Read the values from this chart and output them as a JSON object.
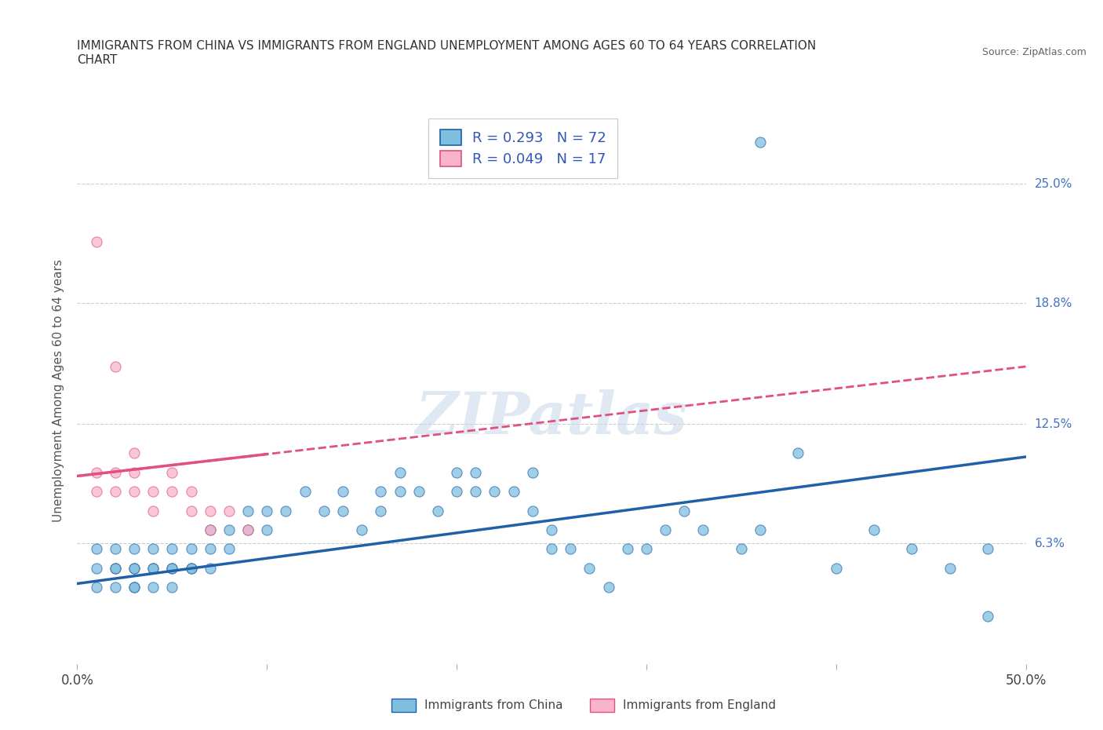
{
  "title": "IMMIGRANTS FROM CHINA VS IMMIGRANTS FROM ENGLAND UNEMPLOYMENT AMONG AGES 60 TO 64 YEARS CORRELATION\nCHART",
  "source": "Source: ZipAtlas.com",
  "ylabel": "Unemployment Among Ages 60 to 64 years",
  "xlim": [
    0.0,
    0.5
  ],
  "ylim": [
    0.0,
    0.285
  ],
  "x_ticks": [
    0.0,
    0.1,
    0.2,
    0.3,
    0.4,
    0.5
  ],
  "x_tick_labels": [
    "0.0%",
    "",
    "",
    "",
    "",
    "50.0%"
  ],
  "y_tick_vals": [
    0.063,
    0.125,
    0.188,
    0.25
  ],
  "y_tick_labels": [
    "6.3%",
    "12.5%",
    "18.8%",
    "25.0%"
  ],
  "china_color": "#7fbfdf",
  "england_color": "#f8b4c8",
  "china_line_color": "#2060a8",
  "england_line_color": "#e05080",
  "legend_R_china": "R = 0.293",
  "legend_N_china": "N = 72",
  "legend_R_england": "R = 0.049",
  "legend_N_england": "N = 17",
  "legend_label_china": "Immigrants from China",
  "legend_label_england": "Immigrants from England",
  "watermark": "ZIPatlas",
  "china_x": [
    0.01,
    0.01,
    0.01,
    0.02,
    0.02,
    0.02,
    0.02,
    0.03,
    0.03,
    0.03,
    0.03,
    0.03,
    0.04,
    0.04,
    0.04,
    0.04,
    0.05,
    0.05,
    0.05,
    0.05,
    0.06,
    0.06,
    0.06,
    0.07,
    0.07,
    0.07,
    0.08,
    0.08,
    0.09,
    0.09,
    0.1,
    0.1,
    0.11,
    0.12,
    0.13,
    0.14,
    0.14,
    0.15,
    0.16,
    0.16,
    0.17,
    0.17,
    0.18,
    0.19,
    0.2,
    0.2,
    0.21,
    0.21,
    0.22,
    0.23,
    0.24,
    0.24,
    0.25,
    0.25,
    0.26,
    0.27,
    0.28,
    0.29,
    0.3,
    0.31,
    0.32,
    0.33,
    0.35,
    0.36,
    0.38,
    0.4,
    0.42,
    0.44,
    0.46,
    0.48,
    0.36,
    0.48
  ],
  "china_y": [
    0.04,
    0.05,
    0.06,
    0.04,
    0.05,
    0.06,
    0.05,
    0.04,
    0.05,
    0.05,
    0.06,
    0.04,
    0.05,
    0.06,
    0.05,
    0.04,
    0.05,
    0.06,
    0.05,
    0.04,
    0.05,
    0.06,
    0.05,
    0.05,
    0.06,
    0.07,
    0.06,
    0.07,
    0.07,
    0.08,
    0.07,
    0.08,
    0.08,
    0.09,
    0.08,
    0.08,
    0.09,
    0.07,
    0.08,
    0.09,
    0.09,
    0.1,
    0.09,
    0.08,
    0.09,
    0.1,
    0.09,
    0.1,
    0.09,
    0.09,
    0.1,
    0.08,
    0.06,
    0.07,
    0.06,
    0.05,
    0.04,
    0.06,
    0.06,
    0.07,
    0.08,
    0.07,
    0.06,
    0.07,
    0.11,
    0.05,
    0.07,
    0.06,
    0.05,
    0.06,
    0.272,
    0.025
  ],
  "england_x": [
    0.01,
    0.01,
    0.02,
    0.02,
    0.03,
    0.03,
    0.03,
    0.04,
    0.04,
    0.05,
    0.05,
    0.06,
    0.06,
    0.07,
    0.07,
    0.08,
    0.09
  ],
  "england_y": [
    0.09,
    0.1,
    0.09,
    0.1,
    0.09,
    0.1,
    0.11,
    0.08,
    0.09,
    0.09,
    0.1,
    0.08,
    0.09,
    0.07,
    0.08,
    0.08,
    0.07
  ],
  "england_outlier_x": [
    0.01
  ],
  "england_outlier_y": [
    0.22
  ],
  "england_outlier2_x": [
    0.02
  ],
  "england_outlier2_y": [
    0.155
  ],
  "background_color": "#ffffff",
  "grid_color": "#cccccc",
  "china_trend_x0": 0.0,
  "china_trend_x1": 0.5,
  "china_trend_y0": 0.042,
  "china_trend_y1": 0.108,
  "england_trend_x0": 0.0,
  "england_trend_x1": 0.5,
  "england_trend_y0": 0.098,
  "england_trend_y1": 0.155
}
